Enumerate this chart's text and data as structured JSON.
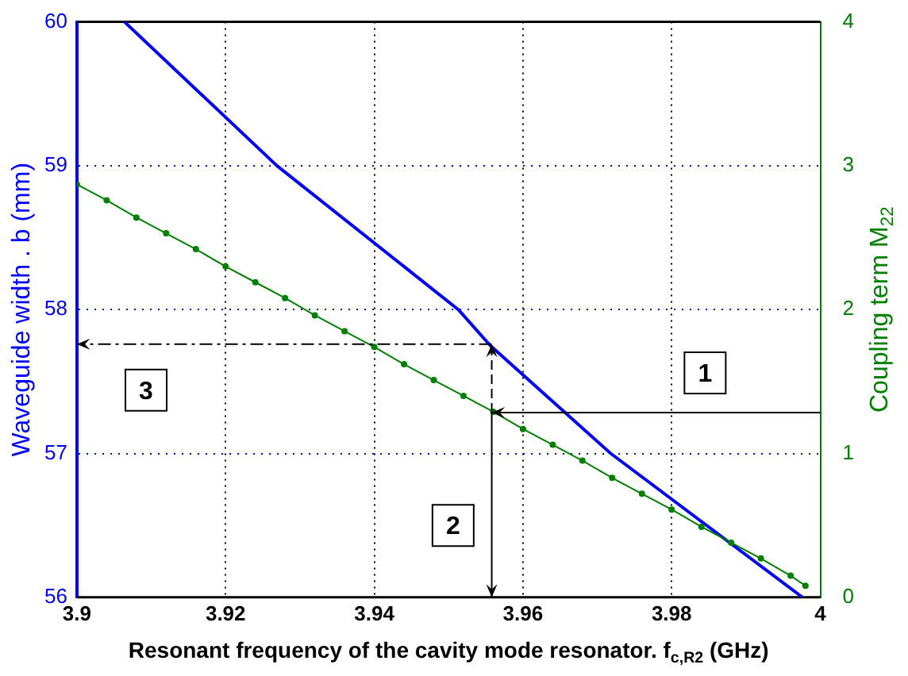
{
  "chart_data": {
    "type": "line",
    "xlabel": "Resonant frequency of the cavity mode resonator. f$_{c,R2}$ (GHz)",
    "ylabel": "Waveguide width . b (mm)",
    "y2label": "Coupling term M$_{22}$",
    "xlim": [
      3.9,
      4
    ],
    "xticks": [
      3.9,
      3.92,
      3.94,
      3.96,
      3.98,
      4
    ],
    "ylim": [
      56,
      60
    ],
    "yticks": [
      56,
      57,
      58,
      59,
      60
    ],
    "y2lim": [
      0,
      4
    ],
    "y2ticks": [
      0,
      1,
      2,
      3,
      4
    ],
    "grid": true,
    "legend": false,
    "series": [
      {
        "color": "#0000ff",
        "marker": "none",
        "x": [
          3.9064,
          3.9269,
          3.9513,
          3.9556,
          3.9718,
          3.9976
        ],
        "values": [
          60,
          59,
          58,
          57.75,
          57.0,
          56
        ]
      },
      {
        "color": "#008000",
        "marker": "circle",
        "axis": "y2",
        "x": [
          3.9,
          3.904,
          3.908,
          3.912,
          3.916,
          3.92,
          3.924,
          3.928,
          3.932,
          3.936,
          3.94,
          3.944,
          3.948,
          3.952,
          3.956,
          3.96,
          3.964,
          3.968,
          3.972,
          3.976,
          3.98,
          3.984,
          3.988,
          3.992,
          3.996,
          3.998
        ],
        "values": [
          2.87,
          2.76,
          2.64,
          2.53,
          2.42,
          2.3,
          2.19,
          2.08,
          1.96,
          1.85,
          1.74,
          1.62,
          1.51,
          1.4,
          1.29,
          1.17,
          1.06,
          0.95,
          0.83,
          0.72,
          0.61,
          0.49,
          0.38,
          0.27,
          0.15,
          0.08
        ]
      }
    ],
    "annotations": [
      {
        "text": "1",
        "x": 3.9845,
        "y": 57.56
      },
      {
        "text": "2",
        "x": 3.9506,
        "y": 56.5
      },
      {
        "text": "3",
        "x": 3.9093,
        "y": 57.44
      }
    ]
  }
}
